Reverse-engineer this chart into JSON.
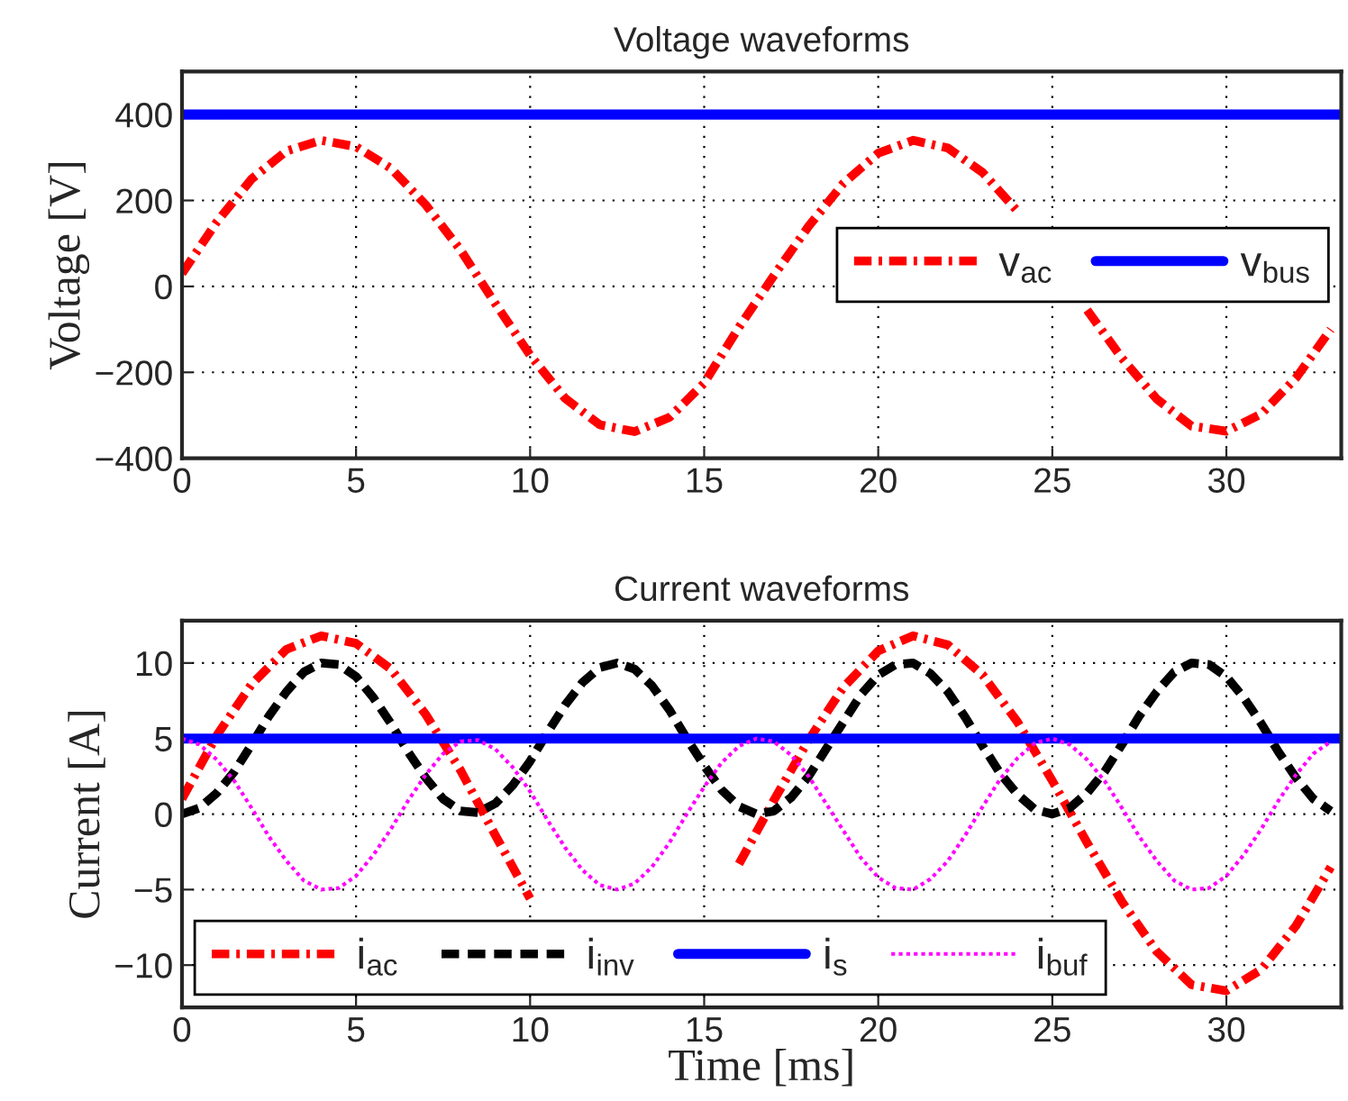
{
  "chart_data": [
    {
      "type": "line",
      "title": "Voltage waveforms",
      "ylabel": "Voltage [V]",
      "xlim": [
        0,
        33.3
      ],
      "ylim": [
        -400,
        500
      ],
      "xticks": [
        0,
        5,
        10,
        15,
        20,
        25,
        30
      ],
      "yticks": [
        -400,
        -200,
        0,
        200,
        400
      ],
      "grid": true,
      "legend": "center right",
      "series": [
        {
          "name": "v$_{ac}$",
          "color": "#ff0000",
          "line_style": "dashdot",
          "x": [
            0,
            1,
            2,
            3,
            4,
            5,
            6,
            7,
            8,
            9,
            10,
            11,
            12,
            13,
            14,
            15,
            16,
            17,
            18,
            19,
            20,
            21,
            22,
            23,
            24,
            25,
            26,
            27,
            28,
            29,
            30,
            31,
            32,
            33
          ],
          "values": [
            30,
            150,
            250,
            315,
            340,
            325,
            275,
            190,
            85,
            -40,
            -160,
            -260,
            -322,
            -338,
            -305,
            -225,
            -95,
            25,
            140,
            240,
            310,
            340,
            322,
            265,
            175,
            null,
            -55,
            -167,
            -262,
            -325,
            -337,
            -297,
            -213,
            -100
          ]
        },
        {
          "name": "v$_{bus}$",
          "color": "#0000ff",
          "line_style": "solid",
          "x": [
            0,
            33.3
          ],
          "values": [
            400,
            400
          ]
        }
      ]
    },
    {
      "type": "line",
      "title": "Current waveforms",
      "xlabel": "Time [ms]",
      "ylabel": "Current [A]",
      "xlim": [
        0,
        33.3
      ],
      "ylim": [
        -12.8,
        12.8
      ],
      "xticks": [
        0,
        5,
        10,
        15,
        20,
        25,
        30
      ],
      "yticks": [
        -10,
        -5,
        0,
        5,
        10
      ],
      "grid": true,
      "legend": "bottom left",
      "series": [
        {
          "name": "i$_{ac}$",
          "color": "#ff0000",
          "line_style": "dashdot",
          "x": [
            0,
            1,
            2,
            3,
            4,
            5,
            6,
            7,
            8,
            9,
            10,
            11,
            12,
            13,
            14,
            15,
            16,
            17,
            18,
            19,
            20,
            21,
            22,
            23,
            24,
            25,
            26,
            27,
            28,
            29,
            30,
            31,
            32,
            33
          ],
          "values": [
            1,
            5.2,
            8.6,
            10.9,
            11.8,
            11.3,
            9.6,
            6.6,
            2.9,
            -1.4,
            -5.6,
            null,
            null,
            null,
            null,
            null,
            -3.3,
            0.9,
            4.9,
            8.4,
            10.8,
            11.8,
            11.2,
            9.2,
            6.1,
            2.2,
            -1.9,
            -5.8,
            -9.1,
            -11.3,
            -11.7,
            -10.3,
            -7.4,
            -3.5
          ]
        },
        {
          "name": "i$_{inv}$",
          "color": "#000000",
          "line_style": "dashed",
          "x": [
            0,
            0.5,
            1,
            1.5,
            2,
            2.5,
            3,
            3.5,
            4,
            4.5,
            5,
            5.5,
            6,
            6.5,
            7,
            7.5,
            8,
            8.5,
            9,
            9.5,
            10,
            10.5,
            11,
            11.5,
            12,
            12.5,
            13,
            13.5,
            14,
            14.5,
            15,
            15.5,
            16,
            16.5,
            17,
            17.5,
            18,
            18.5,
            19,
            19.5,
            20,
            20.5,
            21,
            21.5,
            22,
            22.5,
            23,
            23.5,
            24,
            24.5,
            25,
            25.5,
            26,
            26.5,
            27,
            27.5,
            28,
            28.5,
            29,
            29.5,
            30,
            30.5,
            31,
            31.5,
            32,
            32.5,
            33
          ],
          "values": [
            0,
            0.4,
            1.4,
            2.8,
            4.6,
            6.5,
            8.1,
            9.4,
            10,
            9.9,
            9.1,
            7.7,
            6,
            4.1,
            2.4,
            1,
            0.2,
            0.1,
            0.7,
            1.9,
            3.5,
            5.4,
            7.2,
            8.7,
            9.7,
            10,
            9.6,
            8.5,
            6.9,
            5,
            3.2,
            1.6,
            0.5,
            0,
            0.2,
            1.1,
            2.5,
            4.3,
            6.1,
            7.9,
            9.2,
            9.9,
            10,
            9.3,
            8.1,
            6.4,
            4.5,
            2.7,
            1.3,
            0.3,
            0,
            0.4,
            1.4,
            2.8,
            4.6,
            6.5,
            8.1,
            9.4,
            10,
            9.9,
            9.1,
            7.7,
            6,
            4.1,
            2.4,
            1,
            0.2
          ]
        },
        {
          "name": "i$_{s}$",
          "color": "#0000ff",
          "line_style": "solid",
          "x": [
            0,
            33.3
          ],
          "values": [
            5,
            5
          ]
        },
        {
          "name": "i$_{buf}$",
          "color": "#ff00ff",
          "line_style": "dotted",
          "x": [
            0,
            0.5,
            1,
            1.5,
            2,
            2.5,
            3,
            3.5,
            4,
            4.5,
            5,
            5.5,
            6,
            6.5,
            7,
            7.5,
            8,
            8.5,
            9,
            9.5,
            10,
            10.5,
            11,
            11.5,
            12,
            12.5,
            13,
            13.5,
            14,
            14.5,
            15,
            15.5,
            16,
            16.5,
            17,
            17.5,
            18,
            18.5,
            19,
            19.5,
            20,
            20.5,
            21,
            21.5,
            22,
            22.5,
            23,
            23.5,
            24,
            24.5,
            25,
            25.5,
            26,
            26.5,
            27,
            27.5,
            28,
            28.5,
            29,
            29.5,
            30,
            30.5,
            31,
            31.5,
            32,
            32.5,
            33
          ],
          "values": [
            5,
            4.6,
            3.6,
            2.2,
            0.4,
            -1.5,
            -3.1,
            -4.4,
            -5,
            -4.9,
            -4.1,
            -2.7,
            -1,
            0.9,
            2.6,
            4,
            4.8,
            4.9,
            4.3,
            3.1,
            1.5,
            -0.4,
            -2.2,
            -3.7,
            -4.7,
            -5,
            -4.6,
            -3.5,
            -1.9,
            0,
            1.8,
            3.4,
            4.5,
            5,
            4.8,
            3.9,
            2.5,
            0.7,
            -1.1,
            -2.9,
            -4.2,
            -4.9,
            -5,
            -4.3,
            -3.1,
            -1.4,
            0.5,
            2.3,
            3.7,
            4.7,
            5,
            4.6,
            3.6,
            2.2,
            0.4,
            -1.5,
            -3.1,
            -4.4,
            -5,
            -4.9,
            -4.1,
            -2.7,
            -1,
            0.9,
            2.6,
            4,
            4.8
          ]
        }
      ]
    }
  ]
}
